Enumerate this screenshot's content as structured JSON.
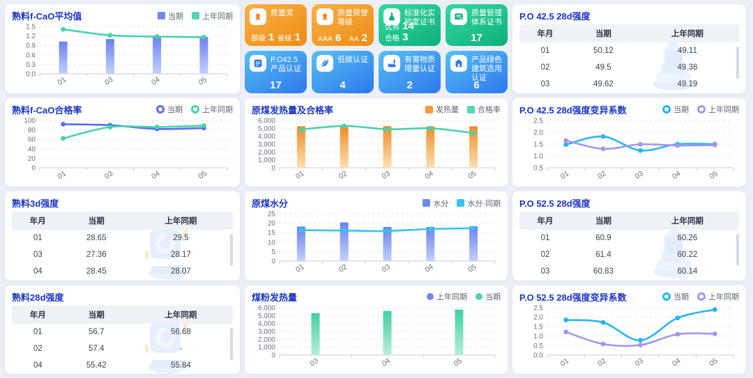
{
  "theme": {
    "page_bg": "#edeff6",
    "panel_bg": "#ffffff",
    "title_color": "#1c36c0",
    "axis_label_color": "#6a7180",
    "accent_orange": "#ee8c14",
    "accent_green": "#0cb07b",
    "accent_blue": "#2d77ed"
  },
  "chart_data": [
    {
      "id": "clinker-fcao-average",
      "type": "bar",
      "title": "熟料f-CaO平均值",
      "legend": [
        {
          "label": "当期",
          "shape": "square",
          "color": "#7388f0"
        },
        {
          "label": "上年同期",
          "shape": "square",
          "color": "#56d5b2"
        }
      ],
      "categories": [
        "01",
        "03",
        "04",
        "05"
      ],
      "ytick_labels": [
        "0.0",
        "0.3",
        "0.6",
        "0.9",
        "1.2",
        "1.5"
      ],
      "ylim": [
        0,
        1.5
      ],
      "grid": true,
      "series": [
        {
          "name": "当期",
          "kind": "bar",
          "color": "#6a82ee",
          "color_light": "#c3d0fb",
          "values": [
            1.02,
            1.1,
            1.2,
            1.17
          ]
        },
        {
          "name": "上年同期",
          "kind": "line",
          "color": "#47d3ab",
          "values": [
            1.41,
            1.22,
            1.18,
            1.16
          ]
        }
      ]
    },
    {
      "id": "clinker-fcao-pass-rate",
      "type": "line",
      "title": "熟料f-CaO合格率",
      "legend": [
        {
          "label": "当期",
          "shape": "ring",
          "color": "#5a6cf0"
        },
        {
          "label": "上年同期",
          "shape": "ring",
          "color": "#47d3ab"
        }
      ],
      "categories": [
        "01",
        "03",
        "04",
        "05"
      ],
      "ytick_labels": [
        "0",
        "20",
        "40",
        "60",
        "80",
        "100"
      ],
      "ylim": [
        0,
        100
      ],
      "grid": true,
      "series": [
        {
          "name": "当期",
          "kind": "line",
          "color": "#5a6cf0",
          "values": [
            92,
            90,
            82,
            84
          ]
        },
        {
          "name": "上年同期",
          "kind": "line",
          "color": "#47d3ab",
          "values": [
            62,
            86,
            86,
            89
          ]
        }
      ]
    },
    {
      "id": "raw-coal-heat-and-pass-rate",
      "type": "bar",
      "title": "原煤发热量及合格率",
      "legend": [
        {
          "label": "发热量",
          "shape": "square",
          "color": "#f59a3d"
        },
        {
          "label": "合格率",
          "shape": "square",
          "color": "#56d5b2"
        }
      ],
      "categories": [
        "01",
        "02",
        "03",
        "04",
        "05"
      ],
      "ytick_labels": [
        "0",
        "1,000",
        "2,000",
        "3,000",
        "4,000",
        "5,000",
        "6,000"
      ],
      "ylim": [
        0,
        6000
      ],
      "grid": true,
      "series": [
        {
          "name": "发热量",
          "kind": "bar",
          "color": "#f08c28",
          "color_light": "#fbe0b4",
          "values": [
            5280,
            5160,
            5270,
            5250,
            5260
          ]
        },
        {
          "name": "合格率",
          "kind": "line",
          "color": "#47d3ab",
          "values": [
            4850,
            5300,
            4880,
            5000,
            4400
          ]
        }
      ]
    },
    {
      "id": "po425-28d-cv",
      "type": "line",
      "title": "P.O 42.5 28d强度变异系数",
      "legend": [
        {
          "label": "当期",
          "shape": "ring",
          "color": "#27b4f2"
        },
        {
          "label": "上年同期",
          "shape": "ring",
          "color": "#a495f0"
        }
      ],
      "categories": [
        "01",
        "02",
        "03",
        "04",
        "05"
      ],
      "ytick_labels": [
        "0.5",
        "1.0",
        "1.5",
        "2.0",
        "2.5"
      ],
      "ylim": [
        0.5,
        2.5
      ],
      "grid": true,
      "series": [
        {
          "name": "当期",
          "kind": "line",
          "color": "#27b4f2",
          "values": [
            1.48,
            1.82,
            1.23,
            1.5,
            1.5
          ]
        },
        {
          "name": "上年同期",
          "kind": "line",
          "color": "#a495f0",
          "values": [
            1.65,
            1.3,
            1.49,
            1.44,
            1.46
          ]
        }
      ]
    },
    {
      "id": "raw-coal-moisture",
      "type": "bar",
      "title": "原煤水分",
      "legend": [
        {
          "label": "水分",
          "shape": "square",
          "color": "#6d87f0"
        },
        {
          "label": "水分-同期",
          "shape": "square",
          "color": "#37c2f0"
        }
      ],
      "categories": [
        "01",
        "02",
        "03",
        "04",
        "05"
      ],
      "ytick_labels": [
        "0",
        "5",
        "10",
        "15",
        "20",
        "25"
      ],
      "ylim": [
        0,
        25
      ],
      "grid": true,
      "series": [
        {
          "name": "水分",
          "kind": "bar",
          "color": "#6a82ee",
          "color_light": "#c3d0fb",
          "values": [
            18.2,
            20.4,
            18,
            18,
            18.4
          ]
        },
        {
          "name": "水分-同期",
          "kind": "line",
          "color": "#37c2f0",
          "values": [
            16.3,
            16.1,
            15.9,
            16.9,
            17.3
          ]
        }
      ]
    },
    {
      "id": "coal-powder-heat",
      "type": "bar",
      "title": "煤粉发热量",
      "legend": [
        {
          "label": "上年同期",
          "shape": "dot",
          "color": "#7585f0"
        },
        {
          "label": "当期",
          "shape": "dot",
          "color": "#54d3ae"
        }
      ],
      "categories": [
        "03",
        "04",
        "05"
      ],
      "ytick_labels": [
        "0",
        "1,000",
        "2,000",
        "3,000",
        "4,000",
        "5,000",
        "6,000"
      ],
      "ylim": [
        0,
        6000
      ],
      "grid": true,
      "series": [
        {
          "name": "当期",
          "kind": "bar",
          "color": "#43cfa4",
          "color_light": "#b8eed9",
          "values": [
            5320,
            5600,
            5750
          ]
        }
      ]
    },
    {
      "id": "po525-28d-cv",
      "type": "line",
      "title": "P.O 52.5 28d强度变异系数",
      "legend": [
        {
          "label": "当期",
          "shape": "ring",
          "color": "#27b4f2"
        },
        {
          "label": "上年同期",
          "shape": "ring",
          "color": "#a495f0"
        }
      ],
      "categories": [
        "01",
        "02",
        "03",
        "04",
        "05"
      ],
      "ytick_labels": [
        "0.0",
        "0.5",
        "1.0",
        "1.5",
        "2.0",
        "2.5"
      ],
      "ylim": [
        0,
        2.5
      ],
      "grid": true,
      "series": [
        {
          "name": "当期",
          "kind": "line",
          "color": "#27b4f2",
          "values": [
            1.85,
            1.72,
            0.78,
            1.96,
            2.4
          ]
        },
        {
          "name": "上年同期",
          "kind": "line",
          "color": "#a495f0",
          "values": [
            1.22,
            0.58,
            0.53,
            1.1,
            1.12
          ]
        }
      ]
    }
  ],
  "tables": [
    {
      "id": "po425-28d-strength",
      "title": "P.O 42.5 28d强度",
      "watermark": "mill-machine-icon",
      "headers": [
        "年月",
        "当期",
        "上年同期"
      ],
      "rows": [
        [
          "01",
          "50.12",
          "49.11"
        ],
        [
          "02",
          "49.5",
          "49.38"
        ],
        [
          "03",
          "49.62",
          "49.19"
        ]
      ]
    },
    {
      "id": "clinker-3d-strength",
      "title": "熟料3d强度",
      "watermark": "clinker-cube-icon",
      "headers": [
        "年月",
        "当期",
        "上年同期"
      ],
      "rows": [
        [
          "01",
          "28.65",
          "29.5"
        ],
        [
          "03",
          "27.36",
          "28.17"
        ],
        [
          "04",
          "28.45",
          "28.07"
        ]
      ]
    },
    {
      "id": "po525-28d-strength",
      "title": "P.O 52.5 28d强度",
      "watermark": "mill-machine-icon",
      "headers": [
        "年月",
        "当期",
        "上年同期"
      ],
      "rows": [
        [
          "01",
          "60.9",
          "60.26"
        ],
        [
          "02",
          "61.4",
          "60.22"
        ],
        [
          "03",
          "60.83",
          "60.14"
        ]
      ]
    },
    {
      "id": "clinker-28d-strength",
      "title": "熟料28d强度",
      "watermark": "clinker-cube-icon",
      "headers": [
        "年月",
        "当期",
        "上年同期"
      ],
      "rows": [
        [
          "01",
          "56.7",
          "56.68"
        ],
        [
          "02",
          "57.4",
          "-"
        ],
        [
          "04",
          "55.42",
          "55.84"
        ]
      ]
    }
  ],
  "badges": {
    "cards": [
      {
        "gradient": "orange",
        "accent": "#ee8c14",
        "icon": "medal-icon",
        "title": "质量奖",
        "stats": [
          {
            "label": "部级",
            "value": "1"
          },
          {
            "label": "省级",
            "value": "1"
          }
        ]
      },
      {
        "gradient": "orange",
        "accent": "#ee8c14",
        "icon": "medal-icon",
        "title": "质量荣誉等级",
        "stats": [
          {
            "label": "AAA",
            "value": "6"
          },
          {
            "label": "AA",
            "value": "2"
          }
        ]
      },
      {
        "gradient": "green",
        "accent": "#0cb07b",
        "icon": "flask-icon",
        "title": "标准化实验室证书",
        "stats": [
          {
            "label": "优秀",
            "value": "14"
          },
          {
            "label": "合格",
            "value": "3"
          }
        ]
      },
      {
        "gradient": "green",
        "accent": "#0cb07b",
        "icon": "certificate-icon",
        "title": "质量管理体系证书",
        "stats": [
          {
            "label": "",
            "value": "17"
          }
        ]
      },
      {
        "gradient": "blue",
        "accent": "#2d77ed",
        "icon": "product-cert-icon",
        "title": "P.O42.5 产品认证",
        "stats": [
          {
            "label": "",
            "value": "17"
          }
        ]
      },
      {
        "gradient": "blue",
        "accent": "#2d77ed",
        "icon": "leaf-icon",
        "title": "低碳认证",
        "stats": [
          {
            "label": "",
            "value": "4"
          }
        ]
      },
      {
        "gradient": "blue",
        "accent": "#2d77ed",
        "icon": "factory-icon",
        "title": "有害物质限量认证",
        "stats": [
          {
            "label": "",
            "value": "2"
          }
        ]
      },
      {
        "gradient": "blue",
        "accent": "#2d77ed",
        "icon": "green-building-icon",
        "title": "产品绿色建筑选用认证",
        "stats": [
          {
            "label": "",
            "value": "6"
          }
        ]
      }
    ]
  }
}
